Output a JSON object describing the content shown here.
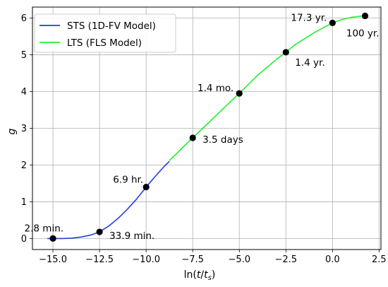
{
  "chart_data": {
    "type": "line",
    "title": "",
    "xlabel_main": "ln(",
    "xlabel_t": "t",
    "xlabel_slash": "/",
    "xlabel_ts": "t",
    "xlabel_sub": "s",
    "xlabel_close": ")",
    "ylabel": "g",
    "xlim": [
      -16.1,
      2.6
    ],
    "ylim": [
      -0.3,
      6.3
    ],
    "xticks": [
      -15.0,
      -12.5,
      -10.0,
      -7.5,
      -5.0,
      -2.5,
      0.0,
      2.5
    ],
    "xtick_labels": [
      "−15.0",
      "−12.5",
      "−10.0",
      "−7.5",
      "−5.0",
      "−2.5",
      "0.0",
      "2.5"
    ],
    "yticks": [
      0,
      1,
      2,
      3,
      4,
      5,
      6
    ],
    "ytick_labels": [
      "0",
      "1",
      "2",
      "3",
      "4",
      "5",
      "6"
    ],
    "grid": true,
    "legend_position": "top-left",
    "series": [
      {
        "name": "STS (1D-FV Model)",
        "color": "#1f3fe0",
        "x": [
          -15.3,
          -15.0,
          -14.5,
          -14.0,
          -13.5,
          -13.0,
          -12.5,
          -12.0,
          -11.5,
          -11.0,
          -10.5,
          -10.0,
          -9.5,
          -9.0,
          -8.75
        ],
        "y": [
          0.0,
          0.0,
          0.0,
          0.01,
          0.04,
          0.09,
          0.18,
          0.34,
          0.55,
          0.8,
          1.08,
          1.4,
          1.7,
          1.98,
          2.1
        ]
      },
      {
        "name": "LTS (FLS Model)",
        "color": "#22ee33",
        "x": [
          -8.75,
          -8.0,
          -7.5,
          -7.0,
          -6.0,
          -5.0,
          -4.0,
          -3.0,
          -2.5,
          -2.0,
          -1.0,
          0.0,
          0.5,
          1.0,
          1.5,
          1.75
        ],
        "y": [
          2.12,
          2.5,
          2.74,
          2.98,
          3.47,
          3.95,
          4.45,
          4.88,
          5.07,
          5.28,
          5.6,
          5.87,
          5.96,
          6.02,
          6.05,
          6.06
        ]
      }
    ],
    "points": {
      "color": "#000000",
      "x": [
        -15.0,
        -12.5,
        -10.0,
        -7.5,
        -5.0,
        -2.5,
        0.0,
        1.75
      ],
      "y": [
        0.0,
        0.18,
        1.4,
        2.74,
        3.95,
        5.07,
        5.87,
        6.06
      ]
    },
    "annotations": [
      {
        "text": "2.8 min.",
        "x": -15.0,
        "y": 0.0,
        "anchor": "end",
        "dx": 15,
        "dy": -10
      },
      {
        "text": "33.9 min.",
        "x": -12.5,
        "y": 0.18,
        "anchor": "start",
        "dx": 14,
        "dy": 10
      },
      {
        "text": "6.9 hr.",
        "x": -10.0,
        "y": 1.4,
        "anchor": "end",
        "dx": -4,
        "dy": -6
      },
      {
        "text": "3.5 days",
        "x": -7.5,
        "y": 2.74,
        "anchor": "start",
        "dx": 14,
        "dy": 7
      },
      {
        "text": "1.4 mo.",
        "x": -5.0,
        "y": 3.95,
        "anchor": "end",
        "dx": -8,
        "dy": -3
      },
      {
        "text": "1.4 yr.",
        "x": -2.5,
        "y": 5.07,
        "anchor": "start",
        "dx": 13,
        "dy": 19
      },
      {
        "text": "17.3 yr.",
        "x": 0.0,
        "y": 5.87,
        "anchor": "end",
        "dx": -8,
        "dy": -3
      },
      {
        "text": "100 yr.",
        "x": 1.75,
        "y": 6.06,
        "anchor": "end",
        "dx": 20,
        "dy": 29
      }
    ]
  }
}
